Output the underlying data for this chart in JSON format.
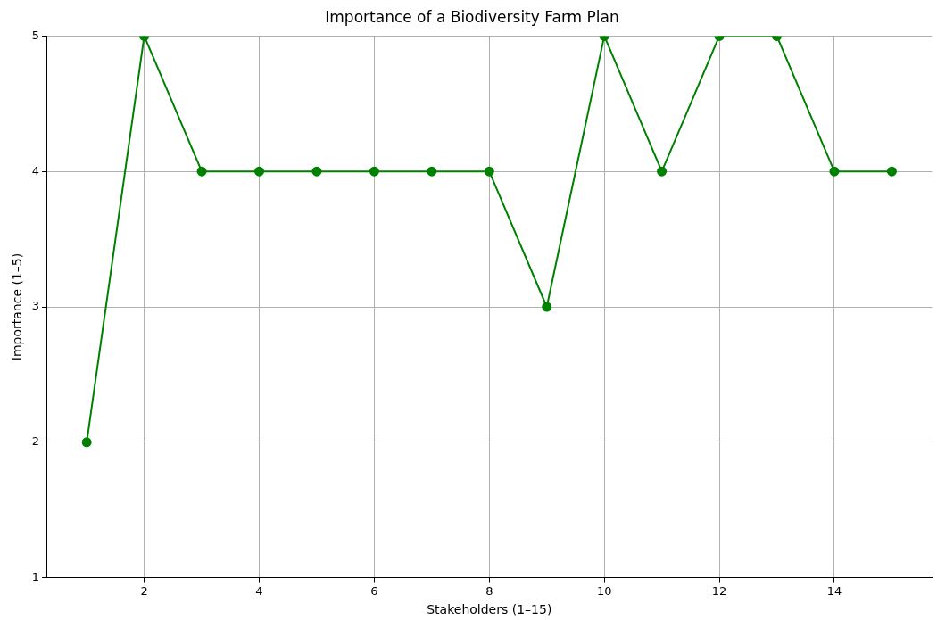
{
  "chart_data": {
    "type": "line",
    "title": "Importance of a Biodiversity Farm Plan",
    "xlabel": "Stakeholders (1–15)",
    "ylabel": "Importance (1–5)",
    "x": [
      1,
      2,
      3,
      4,
      5,
      6,
      7,
      8,
      9,
      10,
      11,
      12,
      13,
      14,
      15
    ],
    "series": [
      {
        "color": "#008000",
        "values": [
          2,
          5,
          4,
          4,
          4,
          4,
          4,
          4,
          3,
          5,
          4,
          5,
          5,
          4,
          4
        ]
      }
    ],
    "xlim": [
      0.3,
      15.7
    ],
    "xticks": [
      2,
      4,
      6,
      8,
      10,
      12,
      14
    ],
    "ylim": [
      1,
      5
    ],
    "yticks": [
      1,
      2,
      3,
      4,
      5
    ],
    "grid": true,
    "marker": "circle",
    "line_style": "solid"
  }
}
